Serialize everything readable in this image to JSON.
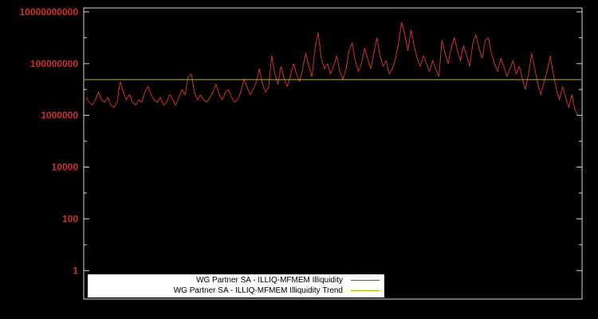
{
  "chart_data": {
    "type": "line",
    "title": "",
    "xlabel": "",
    "ylabel": "",
    "background_color": "#000000",
    "frame_color": "#d8d8d8",
    "tick_label_color": "#cc3333",
    "y_axis": {
      "scale": "log",
      "tick_values": [
        1,
        100,
        10000,
        1000000,
        100000000,
        10000000000
      ],
      "tick_labels": [
        "1",
        "100",
        "10000",
        "1000000",
        "100000000",
        "10000000000"
      ],
      "range": [
        0.08,
        14000000000
      ]
    },
    "x_axis": {
      "tick_labels": []
    },
    "legend": {
      "position": "bottom-left-inside",
      "background": "#ffffff",
      "entries": [
        {
          "label": "WG Partner SA - ILLIQ-MFMEM Illiquidity",
          "color": "#cc3333"
        },
        {
          "label": "WG Partner SA - ILLIQ-MFMEM Illiquidity Trend",
          "color": "#b5b500"
        }
      ]
    },
    "series": [
      {
        "name": "WG Partner SA - ILLIQ-MFMEM Illiquidity",
        "color": "#cc3333",
        "values": [
          5000000.0,
          3200000.0,
          2500000.0,
          4000000.0,
          7900000.0,
          4000000.0,
          3200000.0,
          5000000.0,
          2500000.0,
          2000000.0,
          3200000.0,
          20000000.0,
          7900000.0,
          4000000.0,
          6300000.0,
          3200000.0,
          2500000.0,
          4000000.0,
          3200000.0,
          7900000.0,
          13000000.0,
          6300000.0,
          4000000.0,
          3200000.0,
          5000000.0,
          2500000.0,
          3200000.0,
          6300000.0,
          4000000.0,
          2500000.0,
          5000000.0,
          10000000.0,
          6300000.0,
          32000000.0,
          40000000.0,
          7900000.0,
          4000000.0,
          6300000.0,
          4000000.0,
          3200000.0,
          5000000.0,
          7900000.0,
          16000000.0,
          6300000.0,
          4000000.0,
          7900000.0,
          10000000.0,
          5000000.0,
          3200000.0,
          4000000.0,
          7900000.0,
          25000000.0,
          13000000.0,
          6300000.0,
          10000000.0,
          20000000.0,
          63000000.0,
          16000000.0,
          7900000.0,
          13000000.0,
          200000000.0,
          40000000.0,
          16000000.0,
          79000000.0,
          25000000.0,
          13000000.0,
          32000000.0,
          100000000.0,
          40000000.0,
          20000000.0,
          63000000.0,
          250000000.0,
          79000000.0,
          32000000.0,
          400000000.0,
          1600000000.0,
          160000000.0,
          63000000.0,
          100000000.0,
          40000000.0,
          79000000.0,
          200000000.0,
          50000000.0,
          25000000.0,
          63000000.0,
          320000000.0,
          630000000.0,
          130000000.0,
          50000000.0,
          100000000.0,
          400000000.0,
          160000000.0,
          63000000.0,
          250000000.0,
          1000000000.0,
          200000000.0,
          79000000.0,
          130000000.0,
          40000000.0,
          63000000.0,
          160000000.0,
          630000000.0,
          4000000000.0,
          1300000000.0,
          320000000.0,
          2000000000.0,
          500000000.0,
          160000000.0,
          79000000.0,
          200000000.0,
          100000000.0,
          50000000.0,
          130000000.0,
          63000000.0,
          32000000.0,
          790000000.0,
          250000000.0,
          100000000.0,
          400000000.0,
          1000000000.0,
          320000000.0,
          130000000.0,
          500000000.0,
          200000000.0,
          79000000.0,
          630000000.0,
          1300000000.0,
          400000000.0,
          160000000.0,
          790000000.0,
          1000000000.0,
          250000000.0,
          100000000.0,
          50000000.0,
          160000000.0,
          79000000.0,
          32000000.0,
          63000000.0,
          130000000.0,
          40000000.0,
          79000000.0,
          25000000.0,
          10000000.0,
          40000000.0,
          250000000.0,
          63000000.0,
          16000000.0,
          6300000.0,
          20000000.0,
          50000000.0,
          200000000.0,
          40000000.0,
          10000000.0,
          4000000.0,
          13000000.0,
          5000000.0,
          2000000.0,
          6300000.0,
          1600000.0,
          1000000.0
        ]
      },
      {
        "name": "WG Partner SA - ILLIQ-MFMEM Illiquidity Trend",
        "color": "#b5b500",
        "constant_value": 24000000.0
      }
    ]
  }
}
